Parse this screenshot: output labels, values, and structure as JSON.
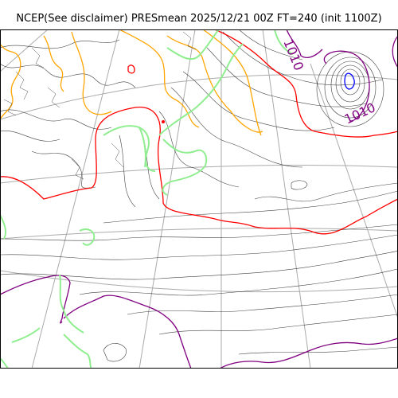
{
  "title": "NCEP(See disclaimer) PRESmean 2025/12/21 00Z FT=240 (init 1100Z)",
  "contour_labels": [
    {
      "text": "1010",
      "color": "#800080"
    },
    {
      "text": "1010",
      "color": "#800080"
    }
  ],
  "colors": {
    "isobar": "#000000",
    "coastline": "#90ee90",
    "orange_contour": "#ffa500",
    "red_contour": "#ff0000",
    "purple_contour": "#800080",
    "blue_contour": "#0000ff",
    "graticule": "#aaaaaa",
    "frame": "#000000"
  }
}
